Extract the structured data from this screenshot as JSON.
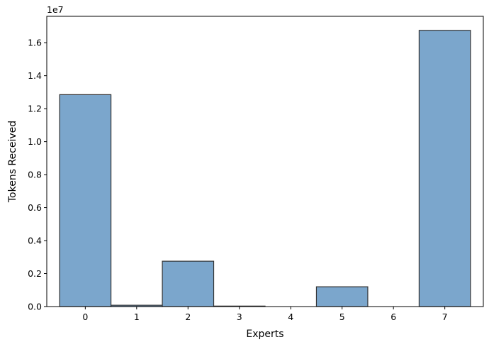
{
  "chart_data": {
    "type": "bar",
    "xlabel": "Experts",
    "ylabel": "Tokens Received",
    "y_offset_label": "1e7",
    "categories": [
      "0",
      "1",
      "2",
      "3",
      "4",
      "5",
      "6",
      "7"
    ],
    "values": [
      12850000,
      80000,
      2750000,
      30000,
      0,
      1200000,
      0,
      16750000
    ],
    "ylim": [
      0,
      17600000
    ],
    "yticks": [
      0,
      2000000,
      4000000,
      6000000,
      8000000,
      10000000,
      12000000,
      14000000,
      16000000
    ],
    "ytick_labels": [
      "0.0",
      "0.2",
      "0.4",
      "0.6",
      "0.8",
      "1.0",
      "1.2",
      "1.4",
      "1.6"
    ],
    "grid": false,
    "bar_color": "#7ba6cc",
    "edge_color": "#333333"
  }
}
